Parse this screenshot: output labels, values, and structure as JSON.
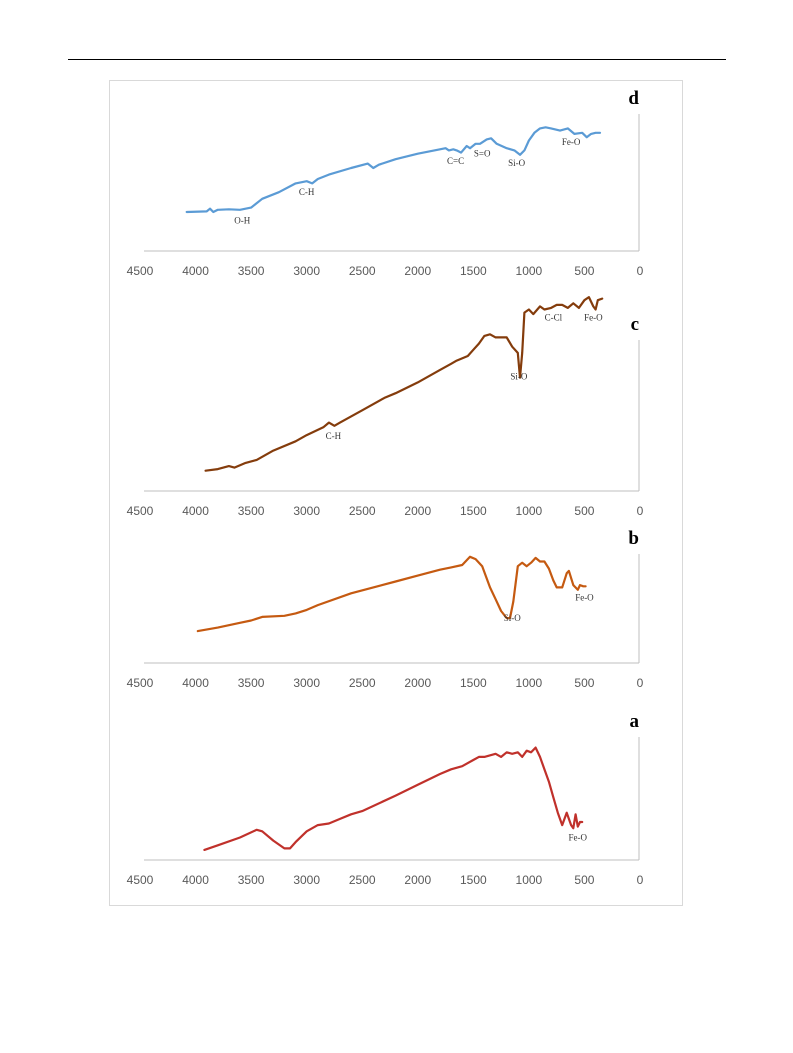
{
  "chart_data": [
    {
      "type": "line",
      "panel": "d",
      "xlim": [
        4500,
        0
      ],
      "x_ticks": [
        4500,
        4000,
        3500,
        3000,
        2500,
        2000,
        1500,
        1000,
        500,
        0
      ],
      "grid": false,
      "color": "#5b9bd5",
      "series": [
        {
          "x": [
            4080,
            3900,
            3870,
            3840,
            3800,
            3700,
            3600,
            3500,
            3400,
            3250,
            3100,
            3000,
            2950,
            2900,
            2800,
            2600,
            2450,
            2400,
            2350,
            2200,
            2000,
            1800,
            1750,
            1720,
            1680,
            1650,
            1610,
            1560,
            1530,
            1480,
            1440,
            1380,
            1340,
            1290,
            1200,
            1130,
            1080,
            1040,
            1000,
            950,
            900,
            850,
            800,
            720,
            650,
            590,
            520,
            480,
            440,
            400,
            360
          ],
          "y": [
            0.1,
            0.105,
            0.13,
            0.1,
            0.12,
            0.125,
            0.12,
            0.14,
            0.22,
            0.28,
            0.36,
            0.38,
            0.36,
            0.4,
            0.44,
            0.5,
            0.54,
            0.5,
            0.53,
            0.58,
            0.63,
            0.67,
            0.68,
            0.66,
            0.67,
            0.66,
            0.64,
            0.7,
            0.68,
            0.72,
            0.72,
            0.76,
            0.77,
            0.72,
            0.68,
            0.66,
            0.62,
            0.66,
            0.75,
            0.82,
            0.86,
            0.87,
            0.86,
            0.84,
            0.86,
            0.81,
            0.82,
            0.78,
            0.81,
            0.82,
            0.82
          ]
        }
      ],
      "annotations": [
        {
          "text": "O-H",
          "x": 3580
        },
        {
          "text": "C-H",
          "x": 3000
        },
        {
          "text": "C=C",
          "x": 1660
        },
        {
          "text": "S=O",
          "x": 1420
        },
        {
          "text": "Si-O",
          "x": 1110
        },
        {
          "text": "Fe-O",
          "x": 620
        }
      ]
    },
    {
      "type": "line",
      "panel": "c",
      "xlim": [
        4500,
        0
      ],
      "x_ticks": [
        4500,
        4000,
        3500,
        3000,
        2500,
        2000,
        1500,
        1000,
        500,
        0
      ],
      "grid": false,
      "color": "#843c0c",
      "series": [
        {
          "x": [
            3910,
            3800,
            3700,
            3650,
            3550,
            3450,
            3300,
            3100,
            3000,
            2850,
            2800,
            2750,
            2700,
            2500,
            2300,
            2200,
            2000,
            1800,
            1700,
            1650,
            1550,
            1500,
            1450,
            1400,
            1350,
            1300,
            1250,
            1200,
            1150,
            1100,
            1080,
            1060,
            1040,
            1000,
            960,
            900,
            860,
            800,
            750,
            700,
            650,
            600,
            550,
            500,
            460,
            420,
            400,
            380,
            340
          ],
          "y": [
            0.06,
            0.07,
            0.09,
            0.08,
            0.11,
            0.13,
            0.19,
            0.25,
            0.29,
            0.34,
            0.37,
            0.35,
            0.37,
            0.45,
            0.53,
            0.56,
            0.63,
            0.71,
            0.75,
            0.77,
            0.8,
            0.84,
            0.88,
            0.93,
            0.94,
            0.92,
            0.92,
            0.92,
            0.86,
            0.82,
            0.66,
            0.82,
            1.08,
            1.1,
            1.07,
            1.12,
            1.1,
            1.11,
            1.13,
            1.13,
            1.11,
            1.14,
            1.11,
            1.16,
            1.18,
            1.12,
            1.1,
            1.16,
            1.17
          ]
        }
      ],
      "annotations": [
        {
          "text": "C-H",
          "x": 2760
        },
        {
          "text": "Si-O",
          "x": 1090
        },
        {
          "text": "C-Cl",
          "x": 780
        },
        {
          "text": "Fe-O",
          "x": 420
        }
      ]
    },
    {
      "type": "line",
      "panel": "b",
      "xlim": [
        4500,
        0
      ],
      "x_ticks": [
        4500,
        4000,
        3500,
        3000,
        2500,
        2000,
        1500,
        1000,
        500,
        0
      ],
      "grid": false,
      "color": "#c55a11",
      "series": [
        {
          "x": [
            3980,
            3800,
            3600,
            3500,
            3400,
            3200,
            3100,
            3000,
            2900,
            2600,
            2400,
            2200,
            2000,
            1800,
            1700,
            1600,
            1530,
            1480,
            1420,
            1350,
            1300,
            1250,
            1200,
            1170,
            1140,
            1100,
            1060,
            1020,
            980,
            940,
            900,
            860,
            820,
            780,
            750,
            700,
            660,
            640,
            600,
            560,
            540,
            510,
            490
          ],
          "y": [
            0.05,
            0.08,
            0.12,
            0.14,
            0.17,
            0.18,
            0.2,
            0.23,
            0.27,
            0.37,
            0.42,
            0.47,
            0.52,
            0.57,
            0.59,
            0.61,
            0.68,
            0.66,
            0.6,
            0.42,
            0.32,
            0.22,
            0.16,
            0.16,
            0.3,
            0.6,
            0.63,
            0.6,
            0.63,
            0.67,
            0.64,
            0.64,
            0.58,
            0.48,
            0.42,
            0.42,
            0.54,
            0.56,
            0.44,
            0.4,
            0.44,
            0.43,
            0.43
          ]
        }
      ],
      "annotations": [
        {
          "text": "Si-O",
          "x": 1150
        },
        {
          "text": "Fe-O",
          "x": 500
        }
      ]
    },
    {
      "type": "line",
      "panel": "a",
      "xlim": [
        4500,
        0
      ],
      "x_ticks": [
        4500,
        4000,
        3500,
        3000,
        2500,
        2000,
        1500,
        1000,
        500,
        0
      ],
      "grid": false,
      "color": "#c0312b",
      "series": [
        {
          "x": [
            3920,
            3800,
            3600,
            3450,
            3400,
            3300,
            3200,
            3150,
            3100,
            3000,
            2900,
            2800,
            2700,
            2600,
            2500,
            2200,
            2000,
            1800,
            1700,
            1600,
            1500,
            1450,
            1400,
            1300,
            1250,
            1200,
            1150,
            1100,
            1060,
            1020,
            980,
            940,
            900,
            860,
            820,
            780,
            740,
            700,
            660,
            620,
            600,
            580,
            560,
            540,
            520
          ],
          "y": [
            0.02,
            0.05,
            0.1,
            0.15,
            0.14,
            0.08,
            0.03,
            0.03,
            0.07,
            0.14,
            0.18,
            0.19,
            0.22,
            0.25,
            0.27,
            0.37,
            0.44,
            0.51,
            0.54,
            0.56,
            0.6,
            0.62,
            0.62,
            0.64,
            0.62,
            0.65,
            0.64,
            0.65,
            0.62,
            0.66,
            0.65,
            0.68,
            0.62,
            0.54,
            0.46,
            0.36,
            0.26,
            0.18,
            0.26,
            0.18,
            0.16,
            0.25,
            0.17,
            0.2,
            0.2
          ]
        }
      ],
      "annotations": [
        {
          "text": "Fe-O",
          "x": 560
        }
      ]
    }
  ]
}
